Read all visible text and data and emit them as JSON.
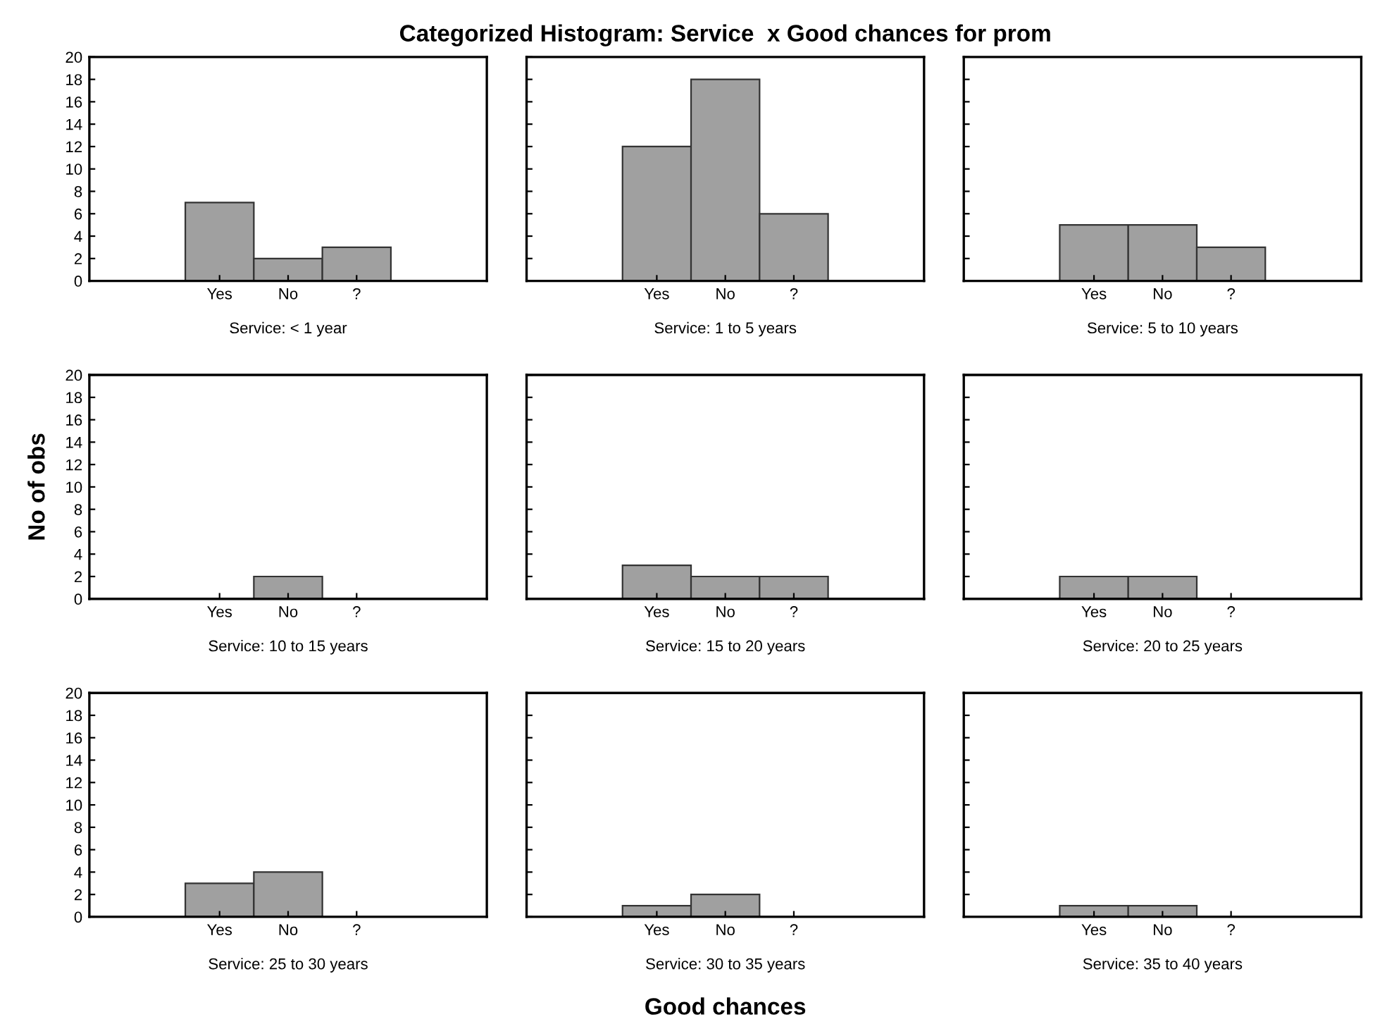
{
  "chart_data": [
    {
      "type": "bar",
      "xlabel": "Service: < 1 year",
      "categories": [
        "Yes",
        "No",
        "?"
      ],
      "values": [
        7,
        2,
        3
      ],
      "color": "#a0a0a0",
      "ylim": [
        0,
        20
      ],
      "yticks": [
        0,
        2,
        4,
        6,
        8,
        10,
        12,
        14,
        16,
        18,
        20
      ],
      "grid": false
    },
    {
      "type": "bar",
      "title": "Categorized Histogram: Service  x Good chances for prom",
      "xlabel": "Service: 1 to 5 years",
      "categories": [
        "Yes",
        "No",
        "?"
      ],
      "values": [
        12,
        18,
        6
      ],
      "color": "#a0a0a0",
      "ylim": [
        0,
        20
      ],
      "yticks": [
        0,
        2,
        4,
        6,
        8,
        10,
        12,
        14,
        16,
        18,
        20
      ],
      "grid": false,
      "tick_labels": "x"
    },
    {
      "type": "bar",
      "xlabel": "Service: 5 to 10 years",
      "categories": [
        "Yes",
        "No",
        "?"
      ],
      "values": [
        5,
        5,
        3
      ],
      "color": "#a0a0a0",
      "ylim": [
        0,
        20
      ],
      "yticks": [
        0,
        2,
        4,
        6,
        8,
        10,
        12,
        14,
        16,
        18,
        20
      ],
      "grid": false,
      "tick_labels": "x"
    },
    {
      "type": "bar",
      "ylabel": "No of obs",
      "xlabel": "Service: 10 to 15 years",
      "categories": [
        "Yes",
        "No",
        "?"
      ],
      "values": [
        0,
        2,
        0
      ],
      "color": "#a0a0a0",
      "ylim": [
        0,
        20
      ],
      "yticks": [
        0,
        2,
        4,
        6,
        8,
        10,
        12,
        14,
        16,
        18,
        20
      ],
      "grid": false
    },
    {
      "type": "bar",
      "xlabel": "Service: 15 to 20 years",
      "categories": [
        "Yes",
        "No",
        "?"
      ],
      "values": [
        3,
        2,
        2
      ],
      "color": "#a0a0a0",
      "ylim": [
        0,
        20
      ],
      "yticks": [
        0,
        2,
        4,
        6,
        8,
        10,
        12,
        14,
        16,
        18,
        20
      ],
      "grid": false,
      "tick_labels": "x"
    },
    {
      "type": "bar",
      "xlabel": "Service: 20 to 25 years",
      "categories": [
        "Yes",
        "No",
        "?"
      ],
      "values": [
        2,
        2,
        0
      ],
      "color": "#a0a0a0",
      "ylim": [
        0,
        20
      ],
      "yticks": [
        0,
        2,
        4,
        6,
        8,
        10,
        12,
        14,
        16,
        18,
        20
      ],
      "grid": false,
      "tick_labels": "x"
    },
    {
      "type": "bar",
      "xlabel": "Service: 25 to 30 years",
      "categories": [
        "Yes",
        "No",
        "?"
      ],
      "values": [
        3,
        4,
        0
      ],
      "color": "#a0a0a0",
      "ylim": [
        0,
        20
      ],
      "yticks": [
        0,
        2,
        4,
        6,
        8,
        10,
        12,
        14,
        16,
        18,
        20
      ],
      "grid": false
    },
    {
      "type": "bar",
      "xlabel": "Service: 30 to 35 years",
      "annotations": [
        "Good chances"
      ],
      "categories": [
        "Yes",
        "No",
        "?"
      ],
      "values": [
        1,
        2,
        0
      ],
      "color": "#a0a0a0",
      "ylim": [
        0,
        20
      ],
      "yticks": [
        0,
        2,
        4,
        6,
        8,
        10,
        12,
        14,
        16,
        18,
        20
      ],
      "grid": false,
      "tick_labels": "x"
    },
    {
      "type": "bar",
      "xlabel": "Service: 35 to 40 years",
      "categories": [
        "Yes",
        "No",
        "?"
      ],
      "values": [
        1,
        1,
        0
      ],
      "color": "#a0a0a0",
      "ylim": [
        0,
        20
      ],
      "yticks": [
        0,
        2,
        4,
        6,
        8,
        10,
        12,
        14,
        16,
        18,
        20
      ],
      "grid": false,
      "tick_labels": "x"
    }
  ]
}
